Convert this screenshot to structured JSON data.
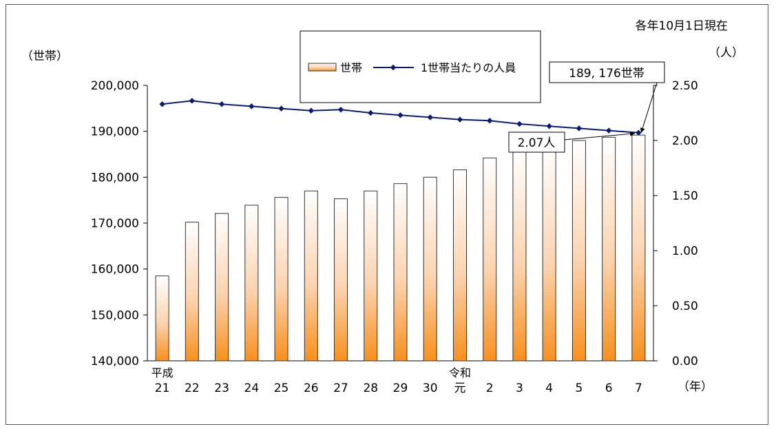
{
  "chart_data": {
    "type": "bar",
    "note": "各年10月1日現在",
    "y_left_unit": "（世帯）",
    "y_right_unit": "（人）",
    "x_unit": "（年）",
    "categories": [
      {
        "era": "平成",
        "label": "21"
      },
      {
        "label": "22"
      },
      {
        "label": "23"
      },
      {
        "label": "24"
      },
      {
        "label": "25"
      },
      {
        "label": "26"
      },
      {
        "label": "27"
      },
      {
        "label": "28"
      },
      {
        "label": "29"
      },
      {
        "label": "30"
      },
      {
        "era": "令和",
        "label": "元"
      },
      {
        "label": "2"
      },
      {
        "label": "3"
      },
      {
        "label": "4"
      },
      {
        "label": "5"
      },
      {
        "label": "6"
      },
      {
        "label": "7"
      }
    ],
    "series": [
      {
        "name": "世帯",
        "type": "bar",
        "axis": "left",
        "values": [
          158500,
          170200,
          172100,
          173900,
          175600,
          177000,
          175300,
          177000,
          178600,
          180000,
          181600,
          184200,
          185900,
          186400,
          188000,
          188700,
          189176
        ]
      },
      {
        "name": "1世帯当たりの人員",
        "type": "line",
        "axis": "right",
        "values": [
          2.33,
          2.36,
          2.33,
          2.31,
          2.29,
          2.27,
          2.28,
          2.25,
          2.23,
          2.21,
          2.19,
          2.18,
          2.15,
          2.13,
          2.11,
          2.09,
          2.07
        ]
      }
    ],
    "y_left": {
      "min": 140000,
      "max": 200000,
      "step": 10000
    },
    "y_right": {
      "min": 0.0,
      "max": 2.5,
      "step": 0.5
    },
    "legend_position": "top",
    "annotations": [
      {
        "text": "189, 176世帯",
        "target_series": 0,
        "target_index": 16
      },
      {
        "text": "2.07人",
        "target_series": 1,
        "target_index": 16
      }
    ],
    "colors": {
      "bar_top": "#ffffff",
      "bar_bottom": "#f7901e",
      "line": "#0a1a6e",
      "bar_border": "#333333"
    }
  }
}
